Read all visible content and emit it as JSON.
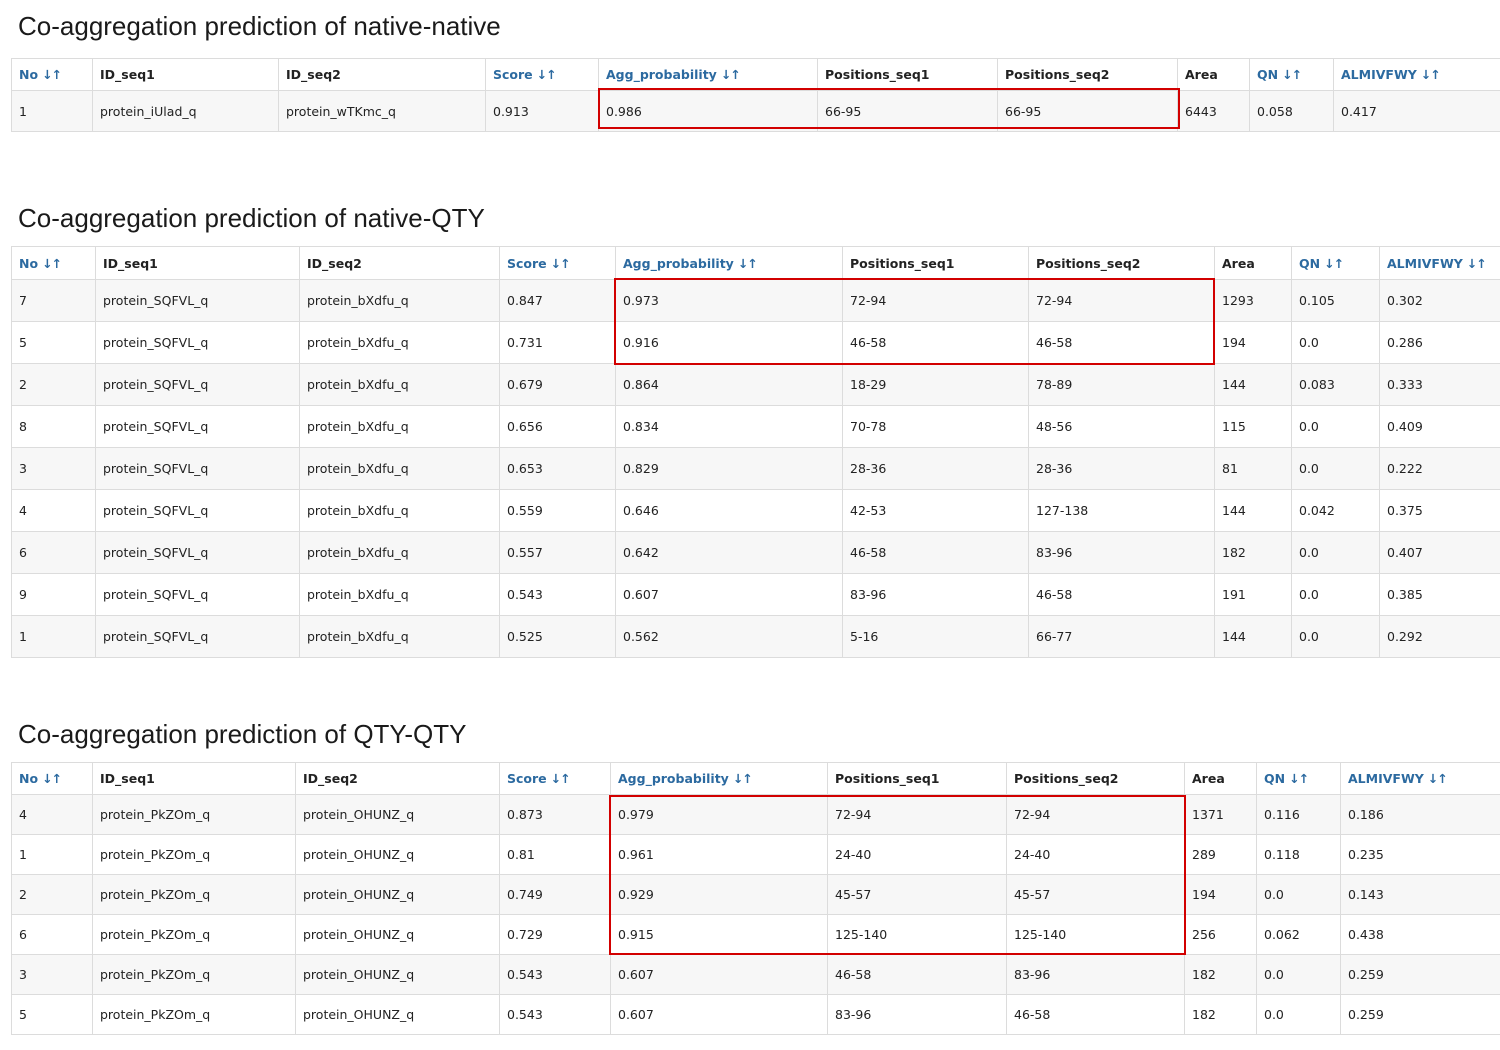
{
  "colors": {
    "header_link": "#2c6aa0",
    "highlight": "#d20000",
    "row_stripe": "#f7f7f7",
    "border": "#dcdcdc"
  },
  "icons": {
    "sort": "sort-arrows-icon"
  },
  "sections": [
    {
      "title": "Co-aggregation prediction of native-native",
      "columns": [
        "No",
        "ID_seq1",
        "ID_seq2",
        "Score",
        "Agg_probability",
        "Positions_seq1",
        "Positions_seq2",
        "Area",
        "QN",
        "ALMIVFWY"
      ],
      "rows": [
        [
          "1",
          "protein_iUlad_q",
          "protein_wTKmc_q",
          "0.913",
          "0.986",
          "66-95",
          "66-95",
          "6443",
          "0.058",
          "0.417"
        ]
      ]
    },
    {
      "title": "Co-aggregation prediction of native-QTY",
      "columns": [
        "No",
        "ID_seq1",
        "ID_seq2",
        "Score",
        "Agg_probability",
        "Positions_seq1",
        "Positions_seq2",
        "Area",
        "QN",
        "ALMIVFWY"
      ],
      "rows": [
        [
          "7",
          "protein_SQFVL_q",
          "protein_bXdfu_q",
          "0.847",
          "0.973",
          "72-94",
          "72-94",
          "1293",
          "0.105",
          "0.302"
        ],
        [
          "5",
          "protein_SQFVL_q",
          "protein_bXdfu_q",
          "0.731",
          "0.916",
          "46-58",
          "46-58",
          "194",
          "0.0",
          "0.286"
        ],
        [
          "2",
          "protein_SQFVL_q",
          "protein_bXdfu_q",
          "0.679",
          "0.864",
          "18-29",
          "78-89",
          "144",
          "0.083",
          "0.333"
        ],
        [
          "8",
          "protein_SQFVL_q",
          "protein_bXdfu_q",
          "0.656",
          "0.834",
          "70-78",
          "48-56",
          "115",
          "0.0",
          "0.409"
        ],
        [
          "3",
          "protein_SQFVL_q",
          "protein_bXdfu_q",
          "0.653",
          "0.829",
          "28-36",
          "28-36",
          "81",
          "0.0",
          "0.222"
        ],
        [
          "4",
          "protein_SQFVL_q",
          "protein_bXdfu_q",
          "0.559",
          "0.646",
          "42-53",
          "127-138",
          "144",
          "0.042",
          "0.375"
        ],
        [
          "6",
          "protein_SQFVL_q",
          "protein_bXdfu_q",
          "0.557",
          "0.642",
          "46-58",
          "83-96",
          "182",
          "0.0",
          "0.407"
        ],
        [
          "9",
          "protein_SQFVL_q",
          "protein_bXdfu_q",
          "0.543",
          "0.607",
          "83-96",
          "46-58",
          "191",
          "0.0",
          "0.385"
        ],
        [
          "1",
          "protein_SQFVL_q",
          "protein_bXdfu_q",
          "0.525",
          "0.562",
          "5-16",
          "66-77",
          "144",
          "0.0",
          "0.292"
        ]
      ]
    },
    {
      "title": "Co-aggregation prediction of QTY-QTY",
      "columns": [
        "No",
        "ID_seq1",
        "ID_seq2",
        "Score",
        "Agg_probability",
        "Positions_seq1",
        "Positions_seq2",
        "Area",
        "QN",
        "ALMIVFWY"
      ],
      "rows": [
        [
          "4",
          "protein_PkZOm_q",
          "protein_OHUNZ_q",
          "0.873",
          "0.979",
          "72-94",
          "72-94",
          "1371",
          "0.116",
          "0.186"
        ],
        [
          "1",
          "protein_PkZOm_q",
          "protein_OHUNZ_q",
          "0.81",
          "0.961",
          "24-40",
          "24-40",
          "289",
          "0.118",
          "0.235"
        ],
        [
          "2",
          "protein_PkZOm_q",
          "protein_OHUNZ_q",
          "0.749",
          "0.929",
          "45-57",
          "45-57",
          "194",
          "0.0",
          "0.143"
        ],
        [
          "6",
          "protein_PkZOm_q",
          "protein_OHUNZ_q",
          "0.729",
          "0.915",
          "125-140",
          "125-140",
          "256",
          "0.062",
          "0.438"
        ],
        [
          "3",
          "protein_PkZOm_q",
          "protein_OHUNZ_q",
          "0.543",
          "0.607",
          "46-58",
          "83-96",
          "182",
          "0.0",
          "0.259"
        ],
        [
          "5",
          "protein_PkZOm_q",
          "protein_OHUNZ_q",
          "0.543",
          "0.607",
          "83-96",
          "46-58",
          "182",
          "0.0",
          "0.259"
        ]
      ]
    }
  ]
}
